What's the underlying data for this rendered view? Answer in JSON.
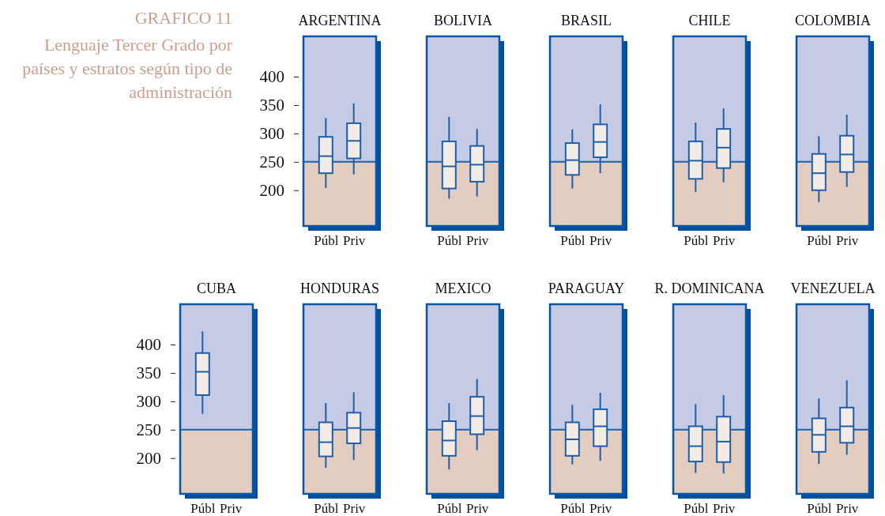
{
  "chart_data": [
    {
      "type": "box",
      "title": "ARGENTINA",
      "annotations": [
        "GRAFICO 11",
        "Lenguaje Tercer Grado por países y estratos según tipo de administración"
      ],
      "categories": [
        "Públ",
        "Priv"
      ],
      "ylim": [
        137,
        471
      ],
      "yticks": [
        200,
        250,
        300,
        350,
        400
      ],
      "bands": [
        {
          "axis": "y",
          "from": 137,
          "to": 250,
          "color": "#e2cdc0"
        },
        {
          "axis": "y",
          "from": 250,
          "to": 471,
          "color": "#c5cae5"
        }
      ],
      "ref_lines": [
        {
          "axis": "y",
          "value": 250,
          "color": "#1f5fa8"
        }
      ],
      "color": "#f3ebe6",
      "boxes": [
        {
          "low": 204,
          "q1": 230,
          "median": 260,
          "q3": 294,
          "high": 327
        },
        {
          "low": 228,
          "q1": 256,
          "median": 287,
          "q3": 318,
          "high": 353
        }
      ]
    },
    {
      "type": "box",
      "title": "BOLIVIA",
      "categories": [
        "Públ",
        "Priv"
      ],
      "ylim": [
        137,
        471
      ],
      "tick_labels": "x",
      "bands": [
        {
          "axis": "y",
          "from": 137,
          "to": 250,
          "color": "#e2cdc0"
        },
        {
          "axis": "y",
          "from": 250,
          "to": 471,
          "color": "#c5cae5"
        }
      ],
      "ref_lines": [
        {
          "axis": "y",
          "value": 250,
          "color": "#1f5fa8"
        }
      ],
      "color": "#f3ebe6",
      "boxes": [
        {
          "low": 185,
          "q1": 203,
          "median": 242,
          "q3": 286,
          "high": 329
        },
        {
          "low": 189,
          "q1": 215,
          "median": 245,
          "q3": 278,
          "high": 308
        }
      ]
    },
    {
      "type": "box",
      "title": "BRASIL",
      "categories": [
        "Públ",
        "Priv"
      ],
      "ylim": [
        137,
        471
      ],
      "tick_labels": "x",
      "bands": [
        {
          "axis": "y",
          "from": 137,
          "to": 250,
          "color": "#e2cdc0"
        },
        {
          "axis": "y",
          "from": 250,
          "to": 471,
          "color": "#c5cae5"
        }
      ],
      "ref_lines": [
        {
          "axis": "y",
          "value": 250,
          "color": "#1f5fa8"
        }
      ],
      "color": "#f3ebe6",
      "boxes": [
        {
          "low": 203,
          "q1": 227,
          "median": 253,
          "q3": 283,
          "high": 307
        },
        {
          "low": 230,
          "q1": 258,
          "median": 285,
          "q3": 316,
          "high": 351
        }
      ]
    },
    {
      "type": "box",
      "title": "CHILE",
      "categories": [
        "Públ",
        "Priv"
      ],
      "ylim": [
        137,
        471
      ],
      "tick_labels": "x",
      "bands": [
        {
          "axis": "y",
          "from": 137,
          "to": 250,
          "color": "#e2cdc0"
        },
        {
          "axis": "y",
          "from": 250,
          "to": 471,
          "color": "#c5cae5"
        }
      ],
      "ref_lines": [
        {
          "axis": "y",
          "value": 250,
          "color": "#1f5fa8"
        }
      ],
      "color": "#f3ebe6",
      "boxes": [
        {
          "low": 197,
          "q1": 220,
          "median": 252,
          "q3": 286,
          "high": 319
        },
        {
          "low": 214,
          "q1": 239,
          "median": 275,
          "q3": 308,
          "high": 344
        }
      ]
    },
    {
      "type": "box",
      "title": "COLOMBIA",
      "categories": [
        "Públ",
        "Priv"
      ],
      "ylim": [
        137,
        471
      ],
      "tick_labels": "x",
      "bands": [
        {
          "axis": "y",
          "from": 137,
          "to": 250,
          "color": "#e2cdc0"
        },
        {
          "axis": "y",
          "from": 250,
          "to": 471,
          "color": "#c5cae5"
        }
      ],
      "ref_lines": [
        {
          "axis": "y",
          "value": 250,
          "color": "#1f5fa8"
        }
      ],
      "color": "#f3ebe6",
      "boxes": [
        {
          "low": 179,
          "q1": 200,
          "median": 230,
          "q3": 264,
          "high": 295
        },
        {
          "low": 206,
          "q1": 232,
          "median": 263,
          "q3": 296,
          "high": 333
        }
      ]
    },
    {
      "type": "box",
      "title": "CUBA",
      "categories": [
        "Públ",
        "Priv"
      ],
      "ylim": [
        137,
        471
      ],
      "yticks": [
        200,
        250,
        300,
        350,
        400
      ],
      "bands": [
        {
          "axis": "y",
          "from": 137,
          "to": 250,
          "color": "#e2cdc0"
        },
        {
          "axis": "y",
          "from": 250,
          "to": 471,
          "color": "#c5cae5"
        }
      ],
      "ref_lines": [
        {
          "axis": "y",
          "value": 250,
          "color": "#1f5fa8"
        }
      ],
      "color": "#f3ebe6",
      "boxes": [
        {
          "low": 278,
          "q1": 311,
          "median": 352,
          "q3": 385,
          "high": 423
        },
        null
      ]
    },
    {
      "type": "box",
      "title": "HONDURAS",
      "categories": [
        "Públ",
        "Priv"
      ],
      "ylim": [
        137,
        471
      ],
      "tick_labels": "x",
      "bands": [
        {
          "axis": "y",
          "from": 137,
          "to": 250,
          "color": "#e2cdc0"
        },
        {
          "axis": "y",
          "from": 250,
          "to": 471,
          "color": "#c5cae5"
        }
      ],
      "ref_lines": [
        {
          "axis": "y",
          "value": 250,
          "color": "#1f5fa8"
        }
      ],
      "color": "#f3ebe6",
      "boxes": [
        {
          "low": 183,
          "q1": 203,
          "median": 228,
          "q3": 263,
          "high": 297
        },
        {
          "low": 197,
          "q1": 226,
          "median": 253,
          "q3": 280,
          "high": 316
        }
      ]
    },
    {
      "type": "box",
      "title": "MEXICO",
      "categories": [
        "Públ",
        "Priv"
      ],
      "ylim": [
        137,
        471
      ],
      "tick_labels": "x",
      "bands": [
        {
          "axis": "y",
          "from": 137,
          "to": 250,
          "color": "#e2cdc0"
        },
        {
          "axis": "y",
          "from": 250,
          "to": 471,
          "color": "#c5cae5"
        }
      ],
      "ref_lines": [
        {
          "axis": "y",
          "value": 250,
          "color": "#1f5fa8"
        }
      ],
      "color": "#f3ebe6",
      "boxes": [
        {
          "low": 180,
          "q1": 204,
          "median": 231,
          "q3": 265,
          "high": 297
        },
        {
          "low": 214,
          "q1": 242,
          "median": 274,
          "q3": 308,
          "high": 339
        }
      ]
    },
    {
      "type": "box",
      "title": "PARAGUAY",
      "categories": [
        "Públ",
        "Priv"
      ],
      "ylim": [
        137,
        471
      ],
      "tick_labels": "x",
      "bands": [
        {
          "axis": "y",
          "from": 137,
          "to": 250,
          "color": "#e2cdc0"
        },
        {
          "axis": "y",
          "from": 250,
          "to": 471,
          "color": "#c5cae5"
        }
      ],
      "ref_lines": [
        {
          "axis": "y",
          "value": 250,
          "color": "#1f5fa8"
        }
      ],
      "color": "#f3ebe6",
      "boxes": [
        {
          "low": 189,
          "q1": 204,
          "median": 233,
          "q3": 263,
          "high": 294
        },
        {
          "low": 195,
          "q1": 221,
          "median": 256,
          "q3": 286,
          "high": 315
        }
      ]
    },
    {
      "type": "box",
      "title": "R. DOMINICANA",
      "categories": [
        "Públ",
        "Priv"
      ],
      "ylim": [
        137,
        471
      ],
      "tick_labels": "x",
      "bands": [
        {
          "axis": "y",
          "from": 137,
          "to": 250,
          "color": "#e2cdc0"
        },
        {
          "axis": "y",
          "from": 250,
          "to": 471,
          "color": "#c5cae5"
        }
      ],
      "ref_lines": [
        {
          "axis": "y",
          "value": 250,
          "color": "#1f5fa8"
        }
      ],
      "color": "#f3ebe6",
      "boxes": [
        {
          "low": 174,
          "q1": 194,
          "median": 221,
          "q3": 256,
          "high": 295
        },
        {
          "low": 173,
          "q1": 193,
          "median": 229,
          "q3": 273,
          "high": 311
        }
      ]
    },
    {
      "type": "box",
      "title": "VENEZUELA",
      "categories": [
        "Públ",
        "Priv"
      ],
      "ylim": [
        137,
        471
      ],
      "tick_labels": "x",
      "bands": [
        {
          "axis": "y",
          "from": 137,
          "to": 250,
          "color": "#e2cdc0"
        },
        {
          "axis": "y",
          "from": 250,
          "to": 471,
          "color": "#c5cae5"
        }
      ],
      "ref_lines": [
        {
          "axis": "y",
          "value": 250,
          "color": "#1f5fa8"
        }
      ],
      "color": "#f3ebe6",
      "boxes": [
        {
          "low": 190,
          "q1": 211,
          "median": 241,
          "q3": 270,
          "high": 305
        },
        {
          "low": 206,
          "q1": 227,
          "median": 256,
          "q3": 289,
          "high": 337
        }
      ]
    }
  ]
}
